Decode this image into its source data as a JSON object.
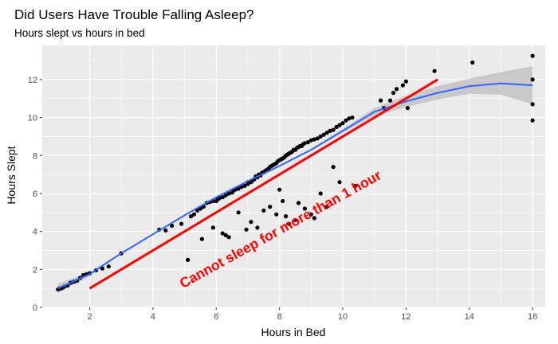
{
  "chart_data": {
    "type": "scatter",
    "title": "Did Users Have Trouble Falling Asleep?",
    "subtitle": "Hours slept vs hours in bed",
    "xlabel": "Hours in Bed",
    "ylabel": "Hours Slept",
    "xlim": [
      0.5,
      16.4
    ],
    "ylim": [
      0,
      13.8
    ],
    "x_ticks": [
      2,
      4,
      6,
      8,
      10,
      12,
      14,
      16
    ],
    "y_ticks": [
      0,
      2,
      4,
      6,
      8,
      10,
      12
    ],
    "grid": true,
    "points_color": "#000000",
    "points": [
      [
        1.0,
        0.95
      ],
      [
        1.05,
        1.0
      ],
      [
        1.1,
        1.0
      ],
      [
        1.15,
        1.05
      ],
      [
        1.2,
        1.1
      ],
      [
        1.3,
        1.15
      ],
      [
        1.4,
        1.3
      ],
      [
        1.5,
        1.35
      ],
      [
        1.6,
        1.4
      ],
      [
        1.7,
        1.55
      ],
      [
        1.8,
        1.7
      ],
      [
        1.9,
        1.75
      ],
      [
        2.0,
        1.8
      ],
      [
        2.2,
        1.95
      ],
      [
        2.4,
        2.05
      ],
      [
        2.6,
        2.15
      ],
      [
        3.0,
        2.85
      ],
      [
        4.2,
        4.1
      ],
      [
        4.4,
        4.05
      ],
      [
        4.6,
        4.3
      ],
      [
        4.9,
        4.4
      ],
      [
        5.1,
        2.5
      ],
      [
        5.2,
        4.8
      ],
      [
        5.3,
        4.9
      ],
      [
        5.4,
        5.1
      ],
      [
        5.5,
        5.2
      ],
      [
        5.55,
        3.6
      ],
      [
        5.6,
        5.3
      ],
      [
        5.7,
        5.5
      ],
      [
        5.8,
        5.55
      ],
      [
        5.9,
        5.6
      ],
      [
        5.9,
        4.2
      ],
      [
        6.0,
        5.6
      ],
      [
        6.05,
        5.7
      ],
      [
        6.1,
        5.75
      ],
      [
        6.2,
        5.8
      ],
      [
        6.2,
        3.9
      ],
      [
        6.3,
        5.9
      ],
      [
        6.3,
        3.8
      ],
      [
        6.4,
        6.0
      ],
      [
        6.4,
        3.7
      ],
      [
        6.5,
        6.05
      ],
      [
        6.55,
        6.15
      ],
      [
        6.6,
        6.2
      ],
      [
        6.7,
        6.25
      ],
      [
        6.7,
        5.0
      ],
      [
        6.8,
        6.35
      ],
      [
        6.9,
        6.4
      ],
      [
        7.0,
        6.5
      ],
      [
        7.0,
        6.6
      ],
      [
        7.1,
        6.6
      ],
      [
        7.15,
        6.7
      ],
      [
        7.2,
        6.75
      ],
      [
        7.25,
        6.9
      ],
      [
        7.3,
        6.85
      ],
      [
        7.35,
        7.0
      ],
      [
        7.4,
        6.95
      ],
      [
        7.45,
        7.1
      ],
      [
        7.5,
        7.1
      ],
      [
        7.55,
        7.2
      ],
      [
        7.6,
        7.25
      ],
      [
        7.65,
        7.3
      ],
      [
        7.7,
        7.4
      ],
      [
        7.75,
        7.45
      ],
      [
        7.8,
        7.5
      ],
      [
        7.85,
        7.55
      ],
      [
        7.9,
        7.6
      ],
      [
        7.95,
        7.7
      ],
      [
        8.0,
        7.75
      ],
      [
        8.05,
        7.8
      ],
      [
        8.1,
        7.85
      ],
      [
        8.15,
        7.9
      ],
      [
        8.2,
        8.0
      ],
      [
        8.25,
        8.05
      ],
      [
        8.3,
        8.1
      ],
      [
        8.35,
        8.15
      ],
      [
        8.4,
        8.2
      ],
      [
        8.45,
        8.3
      ],
      [
        8.5,
        8.3
      ],
      [
        8.55,
        8.4
      ],
      [
        8.6,
        8.45
      ],
      [
        8.65,
        8.5
      ],
      [
        8.7,
        8.5
      ],
      [
        8.75,
        8.6
      ],
      [
        8.8,
        8.65
      ],
      [
        8.9,
        8.7
      ],
      [
        9.0,
        8.8
      ],
      [
        9.1,
        8.85
      ],
      [
        9.2,
        8.9
      ],
      [
        9.3,
        9.0
      ],
      [
        9.4,
        9.1
      ],
      [
        9.5,
        9.2
      ],
      [
        9.6,
        9.3
      ],
      [
        9.7,
        9.35
      ],
      [
        9.8,
        9.5
      ],
      [
        9.9,
        9.6
      ],
      [
        10.0,
        9.7
      ],
      [
        10.1,
        9.85
      ],
      [
        10.2,
        9.95
      ],
      [
        10.3,
        10.0
      ],
      [
        7.5,
        5.1
      ],
      [
        7.7,
        5.3
      ],
      [
        7.9,
        4.9
      ],
      [
        8.0,
        6.2
      ],
      [
        8.1,
        5.6
      ],
      [
        8.2,
        4.8
      ],
      [
        8.3,
        4.4
      ],
      [
        8.5,
        4.6
      ],
      [
        8.6,
        5.5
      ],
      [
        8.8,
        5.2
      ],
      [
        9.0,
        4.9
      ],
      [
        9.1,
        4.7
      ],
      [
        9.3,
        6.0
      ],
      [
        9.5,
        5.3
      ],
      [
        9.7,
        7.4
      ],
      [
        9.9,
        6.6
      ],
      [
        10.4,
        6.4
      ],
      [
        7.3,
        4.2
      ],
      [
        7.1,
        4.5
      ],
      [
        6.95,
        4.1
      ],
      [
        11.2,
        10.9
      ],
      [
        11.3,
        10.5
      ],
      [
        11.5,
        10.9
      ],
      [
        11.6,
        11.3
      ],
      [
        11.7,
        11.5
      ],
      [
        11.9,
        11.7
      ],
      [
        12.0,
        11.9
      ],
      [
        12.05,
        10.5
      ],
      [
        12.9,
        12.45
      ],
      [
        14.1,
        12.9
      ],
      [
        16.0,
        13.25
      ],
      [
        16.0,
        12.0
      ],
      [
        16.0,
        10.7
      ],
      [
        16.0,
        9.85
      ]
    ],
    "trend_line": {
      "name": "loess",
      "color": "#3366ff",
      "band_color": "#bdbdbd",
      "x": [
        1.0,
        2.0,
        3.0,
        4.0,
        5.0,
        6.0,
        7.0,
        8.0,
        9.0,
        10.0,
        11.0,
        12.0,
        13.0,
        14.0,
        15.0,
        16.0
      ],
      "y": [
        1.0,
        1.75,
        2.85,
        3.85,
        4.85,
        5.8,
        6.65,
        7.45,
        8.3,
        9.3,
        10.3,
        10.85,
        11.3,
        11.65,
        11.8,
        11.7
      ],
      "lower": [
        0.75,
        1.65,
        2.8,
        3.8,
        4.8,
        5.75,
        6.6,
        7.4,
        8.25,
        9.2,
        10.1,
        10.55,
        10.95,
        11.25,
        11.2,
        10.7
      ],
      "upper": [
        1.25,
        1.85,
        2.9,
        3.9,
        4.9,
        5.85,
        6.7,
        7.5,
        8.35,
        9.4,
        10.5,
        11.15,
        11.65,
        12.05,
        12.4,
        12.7
      ]
    },
    "reference_line": {
      "color": "#ff0000",
      "x": [
        2,
        13
      ],
      "y": [
        1,
        12
      ]
    },
    "annotation": {
      "text": "Cannot sleep for more than 1 hour",
      "x": 8.1,
      "y": 3.9,
      "angle": -29,
      "color": "#ff0000"
    },
    "panel_color": "#ebebeb",
    "grid_color": "#ffffff"
  }
}
